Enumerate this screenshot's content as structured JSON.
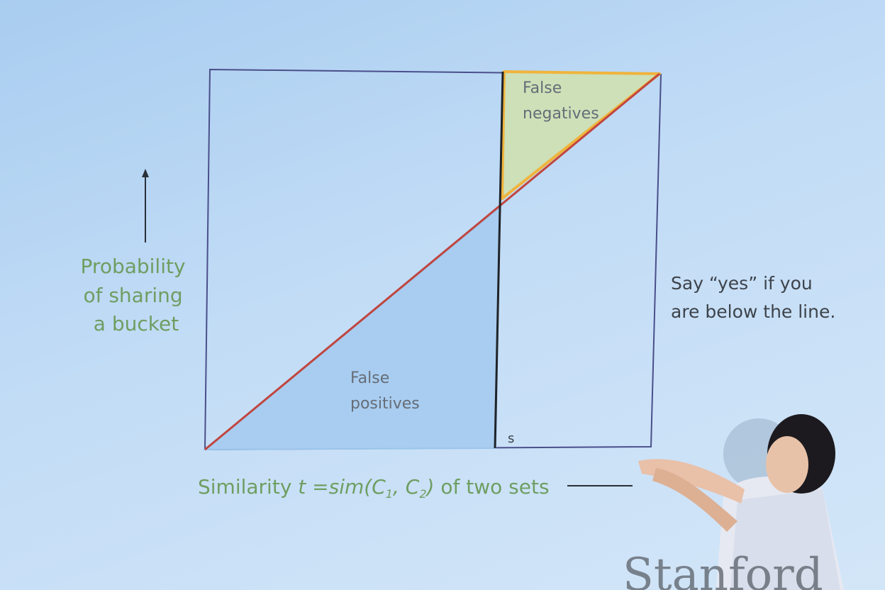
{
  "slide": {
    "y_axis_label": [
      "Probability",
      "of sharing",
      "a bucket"
    ],
    "x_axis_label": {
      "prefix": "Similarity ",
      "t": "t",
      "eq": " =",
      "sim": "sim(C",
      "sub1": "1",
      "comma": ", C",
      "sub2": "2",
      "close": ")",
      "suffix": " of two sets"
    },
    "threshold_label": "s",
    "false_negatives": [
      "False",
      "negatives"
    ],
    "false_positives": [
      "False",
      "positives"
    ],
    "side_note": [
      "Say “yes” if you",
      "are below the line."
    ],
    "footer_logo": "Stanford",
    "colors": {
      "false_negative_fill": "#cde0b8",
      "false_negative_border": "#f0b43c",
      "false_positive_fill": "#a8cdf0",
      "diagonal": "#c0453f",
      "box": "#4a4f8a",
      "label_green": "#6f9e62"
    }
  }
}
